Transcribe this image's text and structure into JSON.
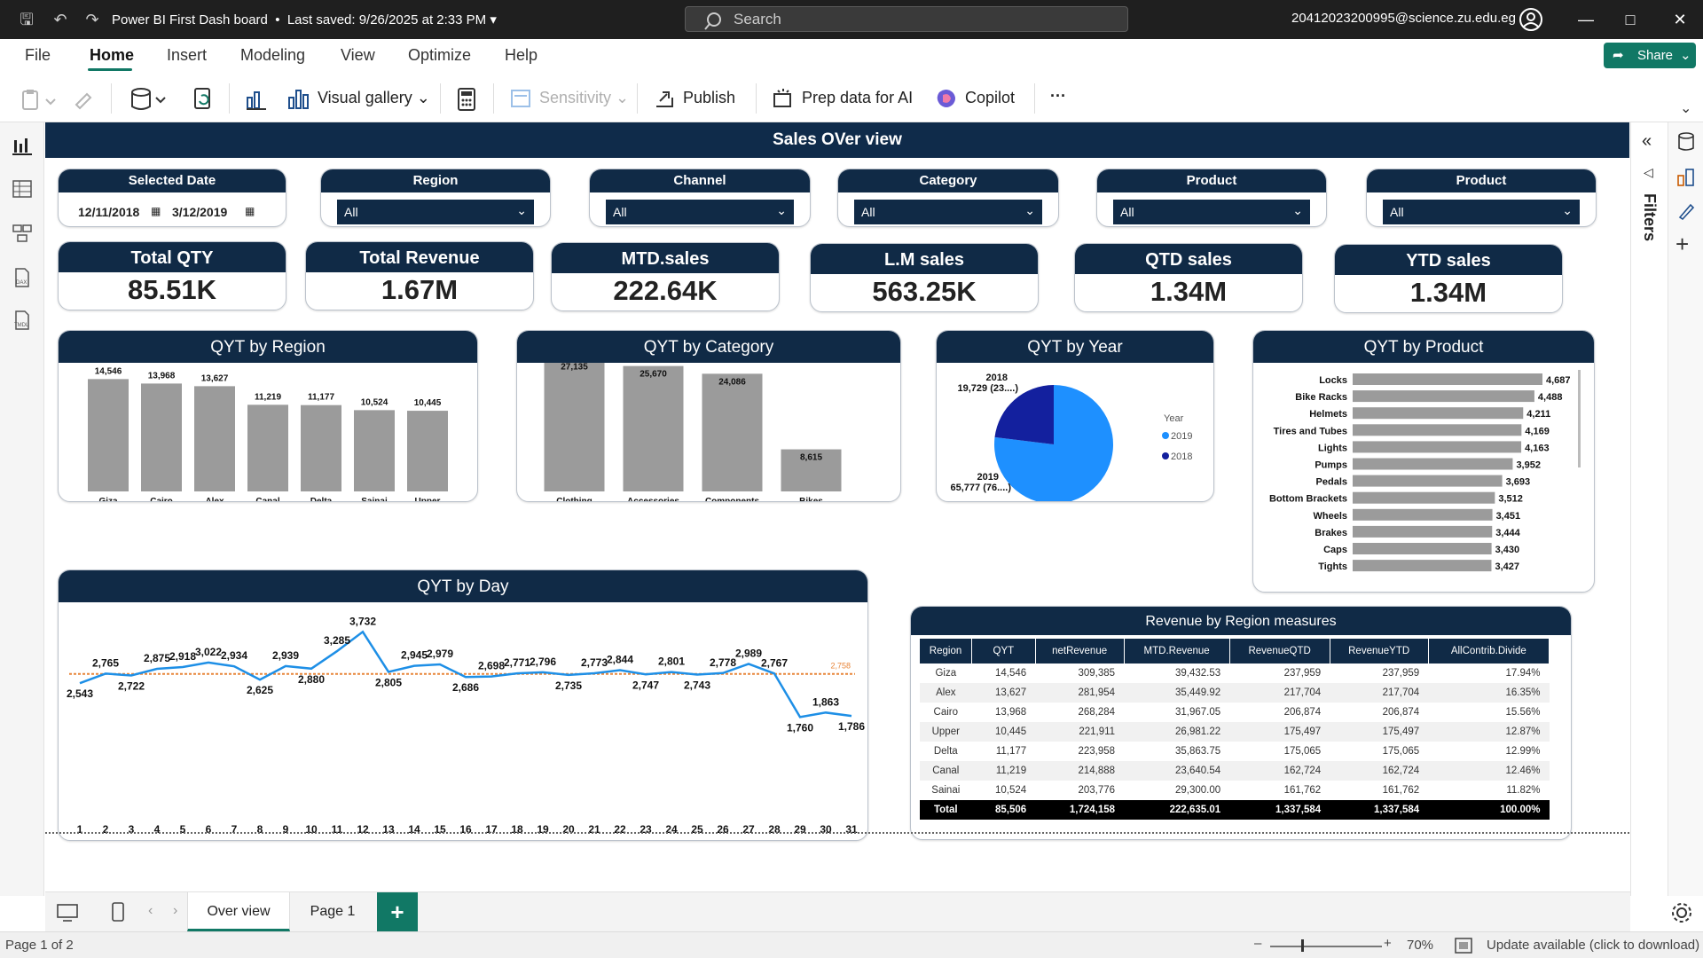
{
  "app": {
    "doc_title": "Power BI First Dash board",
    "saved_status": "Last saved: 9/26/2025 at 2:33 PM",
    "search_placeholder": "Search",
    "user_email": "20412023200995@science.zu.edu.eg"
  },
  "menu": {
    "items": [
      "File",
      "Home",
      "Insert",
      "Modeling",
      "View",
      "Optimize",
      "Help"
    ],
    "active": "Home",
    "share_label": "Share"
  },
  "ribbon": {
    "visual_gallery": "Visual gallery",
    "sensitivity": "Sensitivity",
    "publish": "Publish",
    "prep_data": "Prep data for AI",
    "copilot": "Copilot",
    "more": "···"
  },
  "report": {
    "title": "Sales OVer view",
    "slicers": {
      "date": {
        "label": "Selected Date",
        "from": "12/11/2018",
        "to": "3/12/2019"
      },
      "region": {
        "label": "Region",
        "value": "All"
      },
      "channel": {
        "label": "Channel",
        "value": "All"
      },
      "category": {
        "label": "Category",
        "value": "All"
      },
      "product1": {
        "label": "Product",
        "value": "All"
      },
      "product2": {
        "label": "Product",
        "value": "All"
      }
    },
    "kpis": [
      {
        "label": "Total QTY",
        "value": "85.51K"
      },
      {
        "label": "Total Revenue",
        "value": "1.67M"
      },
      {
        "label": "MTD.sales",
        "value": "222.64K"
      },
      {
        "label": "L.M sales",
        "value": "563.25K"
      },
      {
        "label": "QTD sales",
        "value": "1.34M"
      },
      {
        "label": "YTD sales",
        "value": "1.34M"
      }
    ]
  },
  "chart_data": [
    {
      "type": "bar",
      "title": "QYT by Region",
      "categories": [
        "Giza",
        "Cairo",
        "Alex",
        "Canal",
        "Delta",
        "Sainai",
        "Upper"
      ],
      "values": [
        14546,
        13968,
        13627,
        11219,
        11177,
        10524,
        10445
      ],
      "labels": [
        "14,546",
        "13,968",
        "13,627",
        "11,219",
        "11,177",
        "10,524",
        "10,445"
      ],
      "color": "#9b9b9b"
    },
    {
      "type": "bar",
      "title": "QYT by Category",
      "categories": [
        "Clothing",
        "Accessories",
        "Components",
        "Bikes"
      ],
      "values": [
        27135,
        25670,
        24086,
        8615
      ],
      "labels": [
        "27,135",
        "25,670",
        "24,086",
        "8,615"
      ],
      "color": "#9b9b9b"
    },
    {
      "type": "pie",
      "title": "QYT by Year",
      "legend_title": "Year",
      "slices": [
        {
          "name": "2019",
          "value": 65777,
          "label": "65,777 (76....)",
          "color": "#1e90ff"
        },
        {
          "name": "2018",
          "value": 19729,
          "label": "19,729 (23....)",
          "color": "#13209e"
        }
      ]
    },
    {
      "type": "bar",
      "orientation": "horizontal",
      "title": "QYT by Product",
      "categories": [
        "Locks",
        "Bike Racks",
        "Helmets",
        "Tires and Tubes",
        "Lights",
        "Pumps",
        "Pedals",
        "Bottom Brackets",
        "Wheels",
        "Brakes",
        "Caps",
        "Tights"
      ],
      "values": [
        4687,
        4488,
        4211,
        4169,
        4163,
        3952,
        3693,
        3512,
        3451,
        3444,
        3430,
        3427
      ],
      "labels": [
        "4,687",
        "4,488",
        "4,211",
        "4,169",
        "4,163",
        "3,952",
        "3,693",
        "3,512",
        "3,451",
        "3,444",
        "3,430",
        "3,427"
      ],
      "color": "#9b9b9b"
    },
    {
      "type": "line",
      "title": "QYT by Day",
      "x": [
        1,
        2,
        3,
        4,
        5,
        6,
        7,
        8,
        9,
        10,
        11,
        12,
        13,
        14,
        15,
        16,
        17,
        18,
        19,
        20,
        21,
        22,
        23,
        24,
        25,
        26,
        27,
        28,
        29,
        30,
        31
      ],
      "values": [
        2543,
        2765,
        2722,
        2875,
        2918,
        3022,
        2934,
        2625,
        2939,
        2880,
        3285,
        3732,
        2805,
        2945,
        2979,
        2686,
        2698,
        2771,
        2796,
        2735,
        2773,
        2844,
        2747,
        2801,
        2743,
        2778,
        2989,
        2767,
        1760,
        1863,
        1786
      ],
      "labels": [
        "2,543",
        "2,765",
        "2,722",
        "2,875",
        "2,918",
        "3,022",
        "2,934",
        "2,625",
        "2,939",
        "2,880",
        "3,285",
        "3,732",
        "2,805",
        "2,945",
        "2,979",
        "2,686",
        "2,698",
        "2,771",
        "2,796",
        "2,735",
        "2,773",
        "2,844",
        "2,747",
        "2,801",
        "2,743",
        "2,778",
        "2,989",
        "2,767",
        "1,760",
        "1,863",
        "1,786"
      ],
      "average": 2758,
      "average_label": "2,758",
      "color": "#1e8fe6",
      "avg_color": "#e8863a"
    },
    {
      "type": "table",
      "title": "Revenue by Region measures",
      "columns": [
        "Region",
        "QYT",
        "netRevenue",
        "MTD.Revenue",
        "RevenueQTD",
        "RevenueYTD",
        "AllContrib.Divide"
      ],
      "rows": [
        [
          "Giza",
          "14,546",
          "309,385",
          "39,432.53",
          "237,959",
          "237,959",
          "17.94%"
        ],
        [
          "Alex",
          "13,627",
          "281,954",
          "35,449.92",
          "217,704",
          "217,704",
          "16.35%"
        ],
        [
          "Cairo",
          "13,968",
          "268,284",
          "31,967.05",
          "206,874",
          "206,874",
          "15.56%"
        ],
        [
          "Upper",
          "10,445",
          "221,911",
          "26,981.22",
          "175,497",
          "175,497",
          "12.87%"
        ],
        [
          "Delta",
          "11,177",
          "223,958",
          "35,863.75",
          "175,065",
          "175,065",
          "12.99%"
        ],
        [
          "Canal",
          "11,219",
          "214,888",
          "23,640.54",
          "162,724",
          "162,724",
          "12.46%"
        ],
        [
          "Sainai",
          "10,524",
          "203,776",
          "29,300.00",
          "161,762",
          "161,762",
          "11.82%"
        ]
      ],
      "total": [
        "Total",
        "85,506",
        "1,724,158",
        "222,635.01",
        "1,337,584",
        "1,337,584",
        "100.00%"
      ]
    }
  ],
  "right_panel": {
    "filters_label": "Filters"
  },
  "pages": {
    "tabs": [
      "Over view",
      "Page 1"
    ],
    "active": "Over view",
    "add": "+"
  },
  "status": {
    "page_indicator": "Page 1 of 2",
    "zoom": "70%",
    "update_text": "Update available (click to download)"
  }
}
